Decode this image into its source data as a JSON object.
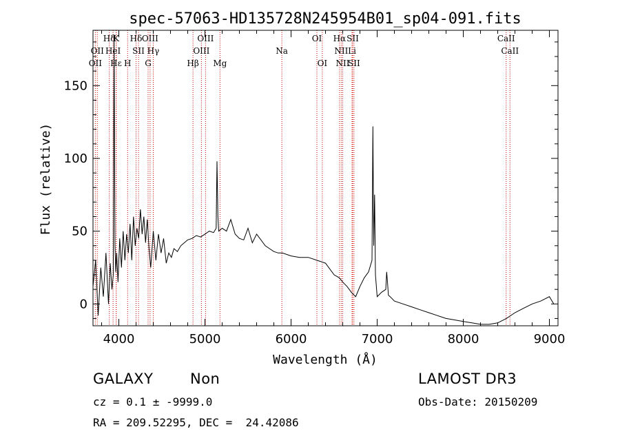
{
  "chart_data": {
    "type": "line",
    "title": "spec-57063-HD135728N245954B01_sp04-091.fits",
    "xlabel": "Wavelength (Å)",
    "ylabel": "Flux (relative)",
    "xlim": [
      3700,
      9100
    ],
    "ylim": [
      -15,
      188
    ],
    "xticks": [
      4000,
      5000,
      6000,
      7000,
      8000,
      9000
    ],
    "yticks": [
      0,
      50,
      100,
      150
    ],
    "series": [
      {
        "name": "flux",
        "x": [
          3700,
          3730,
          3760,
          3790,
          3820,
          3850,
          3880,
          3900,
          3920,
          3935,
          3945,
          3955,
          3965,
          3975,
          3990,
          4010,
          4030,
          4050,
          4070,
          4090,
          4110,
          4130,
          4150,
          4170,
          4190,
          4210,
          4230,
          4250,
          4270,
          4290,
          4310,
          4330,
          4350,
          4370,
          4400,
          4430,
          4460,
          4490,
          4520,
          4550,
          4580,
          4610,
          4640,
          4680,
          4720,
          4760,
          4800,
          4850,
          4900,
          4950,
          5000,
          5050,
          5100,
          5130,
          5140,
          5150,
          5160,
          5200,
          5250,
          5300,
          5350,
          5400,
          5450,
          5500,
          5550,
          5600,
          5650,
          5700,
          5750,
          5800,
          5850,
          5900,
          6000,
          6100,
          6200,
          6300,
          6400,
          6500,
          6560,
          6600,
          6650,
          6700,
          6750,
          6800,
          6850,
          6900,
          6940,
          6950,
          6960,
          6970,
          6980,
          7000,
          7050,
          7100,
          7110,
          7120,
          7130,
          7150,
          7200,
          7300,
          7400,
          7500,
          7600,
          7700,
          7800,
          7900,
          8000,
          8100,
          8200,
          8300,
          8400,
          8500,
          8600,
          8700,
          8800,
          8900,
          9000,
          9050
        ],
        "y": [
          12,
          30,
          -8,
          25,
          5,
          35,
          0,
          28,
          10,
          20,
          185,
          40,
          22,
          35,
          15,
          45,
          25,
          50,
          30,
          48,
          35,
          55,
          30,
          60,
          40,
          52,
          45,
          65,
          48,
          60,
          42,
          58,
          38,
          25,
          50,
          30,
          48,
          35,
          45,
          28,
          35,
          32,
          38,
          36,
          40,
          42,
          44,
          45,
          47,
          46,
          48,
          50,
          49,
          52,
          98,
          60,
          50,
          52,
          50,
          58,
          48,
          45,
          44,
          52,
          42,
          48,
          44,
          40,
          38,
          36,
          35,
          35,
          33,
          32,
          32,
          30,
          28,
          20,
          18,
          15,
          12,
          8,
          5,
          12,
          18,
          22,
          30,
          122,
          40,
          75,
          20,
          5,
          8,
          10,
          22,
          15,
          6,
          5,
          2,
          0,
          -2,
          -4,
          -6,
          -8,
          -10,
          -11,
          -12,
          -13,
          -14,
          -14,
          -13,
          -10,
          -6,
          -3,
          0,
          2,
          5,
          0
        ]
      }
    ],
    "lines": [
      {
        "wl": 3727,
        "row": 3,
        "label": "OII"
      },
      {
        "wl": 3750,
        "row": 2,
        "label": "OII"
      },
      {
        "wl": 3889,
        "row": 1,
        "label": "Hδ"
      },
      {
        "wl": 3933,
        "row": 2,
        "label": "HeI"
      },
      {
        "wl": 3968,
        "row": 3,
        "label": "Hε"
      },
      {
        "wl": 3970,
        "row": 1,
        "label": "K"
      },
      {
        "wl": 4102,
        "row": 3,
        "label": "H"
      },
      {
        "wl": 4200,
        "row": 1,
        "label": "Hδ"
      },
      {
        "wl": 4228,
        "row": 2,
        "label": "SII"
      },
      {
        "wl": 4340,
        "row": 3,
        "label": "G"
      },
      {
        "wl": 4363,
        "row": 1,
        "label": "OIII"
      },
      {
        "wl": 4400,
        "row": 2,
        "label": "Hγ"
      },
      {
        "wl": 4861,
        "row": 3,
        "label": "Hβ"
      },
      {
        "wl": 4959,
        "row": 2,
        "label": "OIII"
      },
      {
        "wl": 5007,
        "row": 1,
        "label": "OIII"
      },
      {
        "wl": 5175,
        "row": 3,
        "label": "Mg"
      },
      {
        "wl": 5893,
        "row": 2,
        "label": "Na"
      },
      {
        "wl": 6300,
        "row": 1,
        "label": "OI"
      },
      {
        "wl": 6363,
        "row": 3,
        "label": "OI"
      },
      {
        "wl": 6563,
        "row": 1,
        "label": "Hα"
      },
      {
        "wl": 6583,
        "row": 2,
        "label": "NII"
      },
      {
        "wl": 6600,
        "row": 3,
        "label": "NII"
      },
      {
        "wl": 6716,
        "row": 1,
        "label": "SII"
      },
      {
        "wl": 6708,
        "row": 2,
        "label": "Li"
      },
      {
        "wl": 6731,
        "row": 3,
        "label": "SII"
      },
      {
        "wl": 8498,
        "row": 1,
        "label": "CaII"
      },
      {
        "wl": 8542,
        "row": 2,
        "label": "CaII"
      }
    ]
  },
  "info": {
    "class": "GALAXY",
    "subclass": "Non",
    "survey": "LAMOST DR3",
    "cz": "cz = 0.1 ± -9999.0",
    "obs_date": "Obs-Date: 20150209",
    "coords": "RA = 209.52295, DEC =  24.42086"
  }
}
